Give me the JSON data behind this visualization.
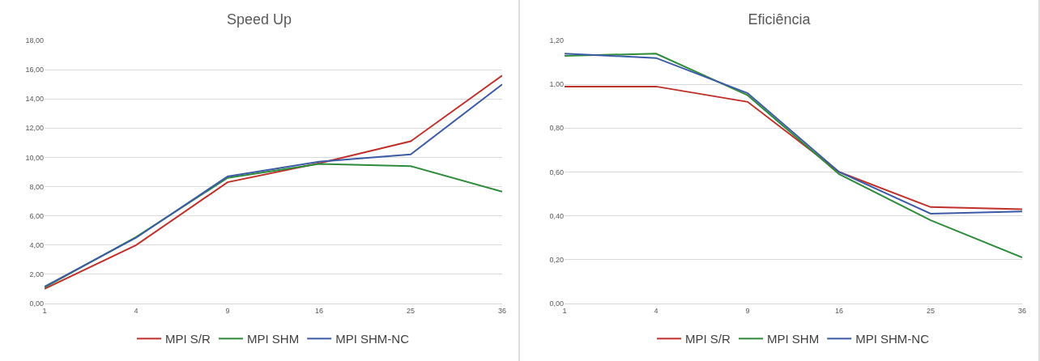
{
  "chart_data": [
    {
      "type": "line",
      "title": "Speed Up",
      "categories": [
        "1",
        "4",
        "9",
        "16",
        "25",
        "36"
      ],
      "series": [
        {
          "name": "MPI S/R",
          "color": "#c0302a",
          "values": [
            1.0,
            4.0,
            8.3,
            9.6,
            11.1,
            15.6
          ]
        },
        {
          "name": "MPI SHM",
          "color": "#2e8b3a",
          "values": [
            1.1,
            4.55,
            8.6,
            9.55,
            9.4,
            7.65
          ]
        },
        {
          "name": "MPI SHM-NC",
          "color": "#3c5aa6",
          "values": [
            1.15,
            4.5,
            8.7,
            9.7,
            10.2,
            15.0
          ]
        }
      ],
      "ylim": [
        0,
        18
      ],
      "yticks": [
        {
          "value": 0,
          "label": "0,00"
        },
        {
          "value": 2,
          "label": "2,00"
        },
        {
          "value": 4,
          "label": "4,00"
        },
        {
          "value": 6,
          "label": "6,00"
        },
        {
          "value": 8,
          "label": "8,00"
        },
        {
          "value": 10,
          "label": "10,00"
        },
        {
          "value": 12,
          "label": "12,00"
        },
        {
          "value": 14,
          "label": "14,00"
        },
        {
          "value": 16,
          "label": "16,00"
        },
        {
          "value": 18,
          "label": "18,00"
        }
      ],
      "grid": "y",
      "legend": "bottom",
      "marker": "none",
      "line_style": "solid"
    },
    {
      "type": "line",
      "title": "Eficiência",
      "categories": [
        "1",
        "4",
        "9",
        "16",
        "25",
        "36"
      ],
      "series": [
        {
          "name": "MPI S/R",
          "color": "#c0302a",
          "values": [
            0.99,
            0.99,
            0.92,
            0.6,
            0.44,
            0.43
          ]
        },
        {
          "name": "MPI SHM",
          "color": "#2e8b3a",
          "values": [
            1.13,
            1.14,
            0.95,
            0.59,
            0.38,
            0.21
          ]
        },
        {
          "name": "MPI SHM-NC",
          "color": "#3c5aa6",
          "values": [
            1.14,
            1.12,
            0.96,
            0.6,
            0.41,
            0.42
          ]
        }
      ],
      "ylim": [
        0,
        1.2
      ],
      "yticks": [
        {
          "value": 0,
          "label": "0,00"
        },
        {
          "value": 0.2,
          "label": "0,20"
        },
        {
          "value": 0.4,
          "label": "0,40"
        },
        {
          "value": 0.6,
          "label": "0,60"
        },
        {
          "value": 0.8,
          "label": "0,80"
        },
        {
          "value": 1.0,
          "label": "1,00"
        },
        {
          "value": 1.2,
          "label": "1,20"
        }
      ],
      "grid": "y",
      "legend": "bottom",
      "marker": "none",
      "line_style": "solid"
    }
  ]
}
